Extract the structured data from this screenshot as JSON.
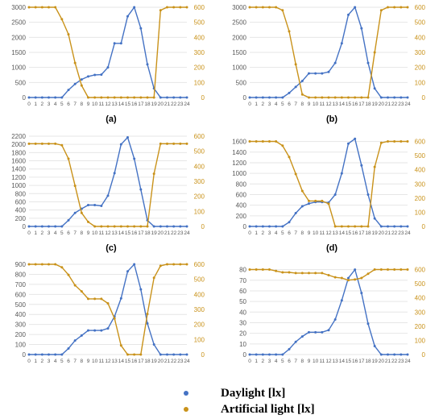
{
  "colors": {
    "daylight": "#4472C4",
    "artificial": "#C9921A",
    "grid": "#e6e6e6",
    "tick": "#595959"
  },
  "legend": {
    "daylight": "Daylight [lx]",
    "artificial": "Artificial light [lx]"
  },
  "chart_data": [
    {
      "type": "line",
      "label": "(a)",
      "x": [
        0,
        1,
        2,
        3,
        4,
        5,
        6,
        7,
        8,
        9,
        10,
        11,
        12,
        13,
        14,
        15,
        16,
        17,
        18,
        19,
        20,
        21,
        22,
        23,
        24
      ],
      "y_left_ticks": [
        0,
        500,
        1000,
        1500,
        2000,
        2500,
        3000
      ],
      "y_left_lim": [
        0,
        3000
      ],
      "y_right_ticks": [
        0,
        100,
        200,
        300,
        400,
        500,
        600
      ],
      "y_right_lim": [
        0,
        600
      ],
      "series": [
        {
          "name": "Daylight [lx]",
          "axis": "left",
          "values": [
            0,
            0,
            0,
            0,
            0,
            0,
            250,
            450,
            600,
            700,
            750,
            760,
            1000,
            1800,
            1800,
            2700,
            3000,
            2300,
            1100,
            300,
            0,
            0,
            0,
            0,
            0
          ]
        },
        {
          "name": "Artificial light [lx]",
          "axis": "right",
          "values": [
            600,
            600,
            600,
            600,
            600,
            520,
            420,
            230,
            80,
            0,
            0,
            0,
            0,
            0,
            0,
            0,
            0,
            0,
            0,
            0,
            580,
            600,
            600,
            600,
            600
          ]
        }
      ]
    },
    {
      "type": "line",
      "label": "(b)",
      "x": [
        0,
        1,
        2,
        3,
        4,
        5,
        6,
        7,
        8,
        9,
        10,
        11,
        12,
        13,
        14,
        15,
        16,
        17,
        18,
        19,
        20,
        21,
        22,
        23,
        24
      ],
      "y_left_ticks": [
        0,
        500,
        1000,
        1500,
        2000,
        2500,
        3000
      ],
      "y_left_lim": [
        0,
        3000
      ],
      "y_right_ticks": [
        0,
        100,
        200,
        300,
        400,
        500,
        600
      ],
      "y_right_lim": [
        0,
        600
      ],
      "series": [
        {
          "name": "Daylight [lx]",
          "axis": "left",
          "values": [
            0,
            0,
            0,
            0,
            0,
            0,
            150,
            350,
            550,
            800,
            800,
            800,
            850,
            1150,
            1800,
            2750,
            3000,
            2300,
            1150,
            300,
            0,
            0,
            0,
            0,
            0
          ]
        },
        {
          "name": "Artificial light [lx]",
          "axis": "right",
          "values": [
            600,
            600,
            600,
            600,
            600,
            580,
            440,
            220,
            20,
            0,
            0,
            0,
            0,
            0,
            0,
            0,
            0,
            0,
            0,
            300,
            580,
            600,
            600,
            600,
            600
          ]
        }
      ]
    },
    {
      "type": "line",
      "label": "(c)",
      "x": [
        0,
        1,
        2,
        3,
        4,
        5,
        6,
        7,
        8,
        9,
        10,
        11,
        12,
        13,
        14,
        15,
        16,
        17,
        18,
        19,
        20,
        21,
        22,
        23,
        24
      ],
      "y_left_ticks": [
        0,
        200,
        400,
        600,
        800,
        1000,
        1200,
        1400,
        1600,
        1800,
        2000,
        2200
      ],
      "y_left_lim": [
        0,
        2200
      ],
      "y_right_ticks": [
        0,
        100,
        200,
        300,
        400,
        500,
        600
      ],
      "y_right_lim": [
        0,
        600
      ],
      "series": [
        {
          "name": "Daylight [lx]",
          "axis": "left",
          "values": [
            0,
            0,
            0,
            0,
            0,
            0,
            150,
            330,
            430,
            520,
            520,
            500,
            750,
            1300,
            2000,
            2170,
            1650,
            900,
            150,
            0,
            0,
            0,
            0,
            0,
            0
          ]
        },
        {
          "name": "Artificial light [lx]",
          "axis": "right",
          "values": [
            550,
            550,
            550,
            550,
            550,
            540,
            450,
            270,
            90,
            30,
            0,
            0,
            0,
            0,
            0,
            0,
            0,
            0,
            0,
            350,
            550,
            550,
            550,
            550,
            550
          ]
        }
      ]
    },
    {
      "type": "line",
      "label": "(d)",
      "x": [
        0,
        1,
        2,
        3,
        4,
        5,
        6,
        7,
        8,
        9,
        10,
        11,
        12,
        13,
        14,
        15,
        16,
        17,
        18,
        19,
        20,
        21,
        22,
        23,
        24
      ],
      "y_left_ticks": [
        0,
        200,
        400,
        600,
        800,
        1000,
        1200,
        1400,
        1600
      ],
      "y_left_lim": [
        0,
        1700
      ],
      "y_right_ticks": [
        0,
        100,
        200,
        300,
        400,
        500,
        600
      ],
      "y_right_lim": [
        0,
        637
      ],
      "series": [
        {
          "name": "Daylight [lx]",
          "axis": "left",
          "values": [
            0,
            0,
            0,
            0,
            0,
            0,
            80,
            250,
            380,
            430,
            460,
            460,
            450,
            600,
            1000,
            1560,
            1650,
            1150,
            600,
            150,
            0,
            0,
            0,
            0,
            0
          ]
        },
        {
          "name": "Artificial light [lx]",
          "axis": "right",
          "values": [
            600,
            600,
            600,
            600,
            600,
            570,
            490,
            370,
            250,
            180,
            180,
            180,
            160,
            0,
            0,
            0,
            0,
            0,
            0,
            420,
            590,
            600,
            600,
            600,
            600
          ]
        }
      ]
    },
    {
      "type": "line",
      "label": "(e)",
      "x": [
        0,
        1,
        2,
        3,
        4,
        5,
        6,
        7,
        8,
        9,
        10,
        11,
        12,
        13,
        14,
        15,
        16,
        17,
        18,
        19,
        20,
        21,
        22,
        23,
        24
      ],
      "y_left_ticks": [
        0,
        100,
        200,
        300,
        400,
        500,
        600,
        700,
        800,
        900
      ],
      "y_left_lim": [
        0,
        900
      ],
      "y_right_ticks": [
        0,
        100,
        200,
        300,
        400,
        500,
        600
      ],
      "y_right_lim": [
        0,
        600
      ],
      "series": [
        {
          "name": "Daylight [lx]",
          "axis": "left",
          "values": [
            0,
            0,
            0,
            0,
            0,
            0,
            60,
            140,
            190,
            240,
            240,
            240,
            260,
            380,
            560,
            830,
            900,
            650,
            310,
            100,
            0,
            0,
            0,
            0,
            0
          ]
        },
        {
          "name": "Artificial light [lx]",
          "axis": "right",
          "values": [
            600,
            600,
            600,
            600,
            600,
            580,
            530,
            460,
            420,
            370,
            370,
            370,
            340,
            240,
            60,
            0,
            0,
            0,
            270,
            510,
            590,
            600,
            600,
            600,
            600
          ]
        }
      ]
    },
    {
      "type": "line",
      "label": "(f)",
      "x": [
        0,
        1,
        2,
        3,
        4,
        5,
        6,
        7,
        8,
        9,
        10,
        11,
        12,
        13,
        14,
        15,
        16,
        17,
        18,
        19,
        20,
        21,
        22,
        23,
        24
      ],
      "y_left_ticks": [
        0,
        10,
        20,
        30,
        40,
        50,
        60,
        70,
        80
      ],
      "y_left_lim": [
        0,
        85
      ],
      "y_right_ticks": [
        0,
        100,
        200,
        300,
        400,
        500,
        600
      ],
      "y_right_lim": [
        0,
        637
      ],
      "series": [
        {
          "name": "Daylight [lx]",
          "axis": "left",
          "values": [
            0,
            0,
            0,
            0,
            0,
            0,
            5,
            12,
            17,
            21,
            21,
            21,
            23,
            33,
            51,
            72,
            80,
            58,
            29,
            8,
            0,
            0,
            0,
            0,
            0
          ]
        },
        {
          "name": "Artificial light [lx]",
          "axis": "right",
          "values": [
            600,
            600,
            600,
            600,
            590,
            580,
            580,
            575,
            575,
            575,
            575,
            575,
            560,
            545,
            540,
            525,
            530,
            540,
            570,
            600,
            600,
            600,
            600,
            600,
            600
          ]
        }
      ]
    }
  ]
}
